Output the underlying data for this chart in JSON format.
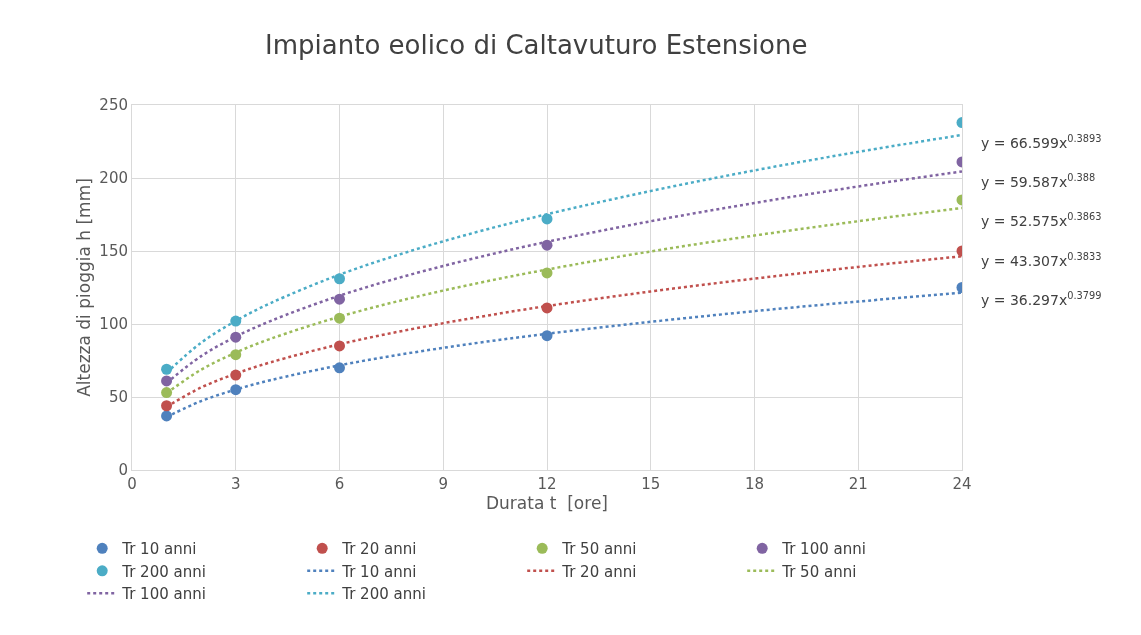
{
  "chart_data": {
    "type": "scatter",
    "title": "Impianto eolico di Caltavuturo Estensione",
    "xlabel": "Durata t  [ore]",
    "ylabel": "Altezza di pioggia h [mm]",
    "x": [
      1,
      3,
      6,
      12,
      24
    ],
    "series": [
      {
        "name": "Tr 10 anni",
        "color": "#4f81bd",
        "values": [
          37,
          55,
          70,
          92,
          125
        ]
      },
      {
        "name": "Tr 20 anni",
        "color": "#c0504d",
        "values": [
          44,
          65,
          85,
          111,
          150
        ]
      },
      {
        "name": "Tr 50 anni",
        "color": "#9bbb59",
        "values": [
          53,
          79,
          104,
          135,
          185
        ]
      },
      {
        "name": "Tr 100 anni",
        "color": "#8064a2",
        "values": [
          61,
          91,
          117,
          154,
          211
        ]
      },
      {
        "name": "Tr 200 anni",
        "color": "#4bacc6",
        "values": [
          69,
          102,
          131,
          172,
          238
        ]
      },
      {
        "name": "Tr 10 anni",
        "type": "line",
        "line_style": "dotted",
        "marker": "none",
        "color": "#4f81bd",
        "x": [
          1,
          2,
          3,
          4,
          6,
          8,
          10,
          12,
          15,
          18,
          21,
          24
        ],
        "values": [
          36.3,
          47.2,
          55.1,
          61.5,
          71.7,
          80.0,
          87.1,
          93.3,
          101.5,
          108.8,
          115.4,
          121.4
        ]
      },
      {
        "name": "Tr 20 anni",
        "type": "line",
        "line_style": "dotted",
        "marker": "none",
        "color": "#c0504d",
        "x": [
          1,
          2,
          3,
          4,
          6,
          8,
          10,
          12,
          15,
          18,
          21,
          24
        ],
        "values": [
          43.3,
          56.5,
          66.0,
          73.7,
          86.1,
          96.1,
          104.7,
          112.3,
          122.3,
          131.1,
          139.1,
          146.4
        ]
      },
      {
        "name": "Tr 50 anni",
        "type": "line",
        "line_style": "dotted",
        "marker": "none",
        "color": "#9bbb59",
        "x": [
          1,
          2,
          3,
          4,
          6,
          8,
          10,
          12,
          15,
          18,
          21,
          24
        ],
        "values": [
          52.6,
          68.7,
          80.4,
          89.8,
          105.0,
          117.4,
          128.0,
          137.3,
          149.7,
          160.6,
          170.4,
          179.5
        ]
      },
      {
        "name": "Tr 100 anni",
        "type": "line",
        "line_style": "dotted",
        "marker": "none",
        "color": "#8064a2",
        "x": [
          1,
          2,
          3,
          4,
          6,
          8,
          10,
          12,
          15,
          18,
          21,
          24
        ],
        "values": [
          59.6,
          78.0,
          91.3,
          102.0,
          119.4,
          133.5,
          145.6,
          156.3,
          170.4,
          182.9,
          194.2,
          204.5
        ]
      },
      {
        "name": "Tr 200 anni",
        "type": "line",
        "line_style": "dotted",
        "marker": "none",
        "color": "#4bacc6",
        "x": [
          1,
          2,
          3,
          4,
          6,
          8,
          10,
          12,
          15,
          18,
          21,
          24
        ],
        "values": [
          66.6,
          87.2,
          102.1,
          114.2,
          133.8,
          149.6,
          163.2,
          175.2,
          191.1,
          205.2,
          217.9,
          229.5
        ]
      }
    ],
    "marker": "circle",
    "xlim": [
      0,
      24
    ],
    "xticks": [
      0,
      3,
      6,
      9,
      12,
      15,
      18,
      21,
      24
    ],
    "ylim": [
      0,
      250
    ],
    "yticks": [
      0,
      50,
      100,
      150,
      200,
      250
    ],
    "grid": true,
    "legend": "bottom",
    "annotations": [
      "y = 66.599x$^{0.3893}$",
      "y = 59.587x$^{0.388}$",
      "y = 52.575x$^{0.3863}$",
      "y = 43.307x$^{0.3833}$",
      "y = 36.297x$^{0.3799}$"
    ]
  }
}
